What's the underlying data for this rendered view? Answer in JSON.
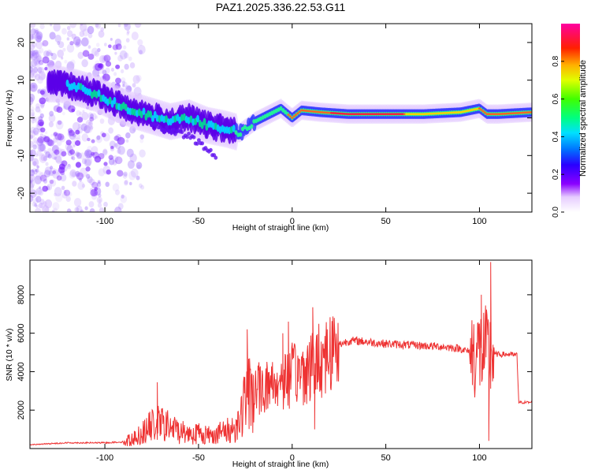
{
  "title": "PAZ1.2025.336.22.53.G11",
  "chart_data": [
    {
      "type": "heatmap",
      "xlabel": "Height of straight line (km)",
      "ylabel": "Frequency (Hz)",
      "xlim": [
        -140,
        128
      ],
      "ylim": [
        -25,
        25
      ],
      "xticks": [
        -100,
        -50,
        0,
        50,
        100
      ],
      "yticks": [
        -20,
        -10,
        0,
        10,
        20
      ],
      "colorbar": {
        "label": "Normalized spectral amplitude",
        "range": [
          0,
          1
        ],
        "ticks": [
          0.0,
          0.2,
          0.4,
          0.6,
          0.8
        ],
        "colormap": "rainbow (white → violet → blue → cyan → green → yellow → red → magenta)"
      },
      "ridge": {
        "x": [
          -125,
          -115,
          -105,
          -95,
          -85,
          -75,
          -65,
          -55,
          -45,
          -35,
          -28,
          -20,
          -12,
          -6,
          0,
          5,
          15,
          30,
          50,
          70,
          90,
          100,
          104,
          110,
          128
        ],
        "y": [
          9,
          8,
          6.5,
          4,
          2,
          0.5,
          -1,
          0,
          -2,
          -3,
          -4,
          -1,
          1,
          2.5,
          0,
          2,
          1.5,
          1,
          1,
          1,
          1.5,
          2.5,
          1,
          1,
          1.5
        ]
      },
      "lower_branch": {
        "x": [
          -75,
          -65,
          -55,
          -50,
          -45,
          -40
        ],
        "y": [
          -2,
          -3.5,
          -5,
          -6.5,
          -8.5,
          -11
        ]
      }
    },
    {
      "type": "line",
      "xlabel": "Height of straight line (km)",
      "ylabel": "SNR (10 * v/v)",
      "xlim": [
        -140,
        128
      ],
      "ylim": [
        0,
        9800
      ],
      "xticks": [
        -100,
        -50,
        0,
        50,
        100
      ],
      "yticks": [
        2000,
        4000,
        6000,
        8000
      ],
      "color": "#ee3333",
      "envelope": {
        "x": [
          -140,
          -120,
          -100,
          -90,
          -85,
          -80,
          -75,
          -70,
          -65,
          -60,
          -55,
          -50,
          -45,
          -40,
          -35,
          -30,
          -27,
          -25,
          -22,
          -18,
          -15,
          -10,
          -6,
          -3,
          0,
          3,
          6,
          9,
          12,
          15,
          20,
          25,
          30,
          35,
          40,
          50,
          60,
          70,
          80,
          90,
          95,
          100,
          103,
          105,
          107,
          110,
          115,
          120,
          121,
          125,
          128
        ],
        "y": [
          200,
          300,
          300,
          350,
          500,
          800,
          1200,
          1300,
          1100,
          900,
          800,
          800,
          700,
          800,
          900,
          1100,
          1800,
          2600,
          2900,
          3100,
          3200,
          3400,
          3500,
          3600,
          3800,
          3900,
          4000,
          4200,
          4400,
          4700,
          5100,
          5400,
          5600,
          5600,
          5550,
          5450,
          5400,
          5350,
          5300,
          5200,
          5000,
          5000,
          5000,
          4900,
          4900,
          4900,
          4900,
          4850,
          2400,
          2400,
          2400
        ]
      },
      "spikes": [
        {
          "x": -72,
          "y": 3450
        },
        {
          "x": -24,
          "y": 6200
        },
        {
          "x": -5,
          "y": 6000
        },
        {
          "x": -2,
          "y": 6600
        },
        {
          "x": 11,
          "y": 7350
        },
        {
          "x": 12,
          "y": 1000
        },
        {
          "x": 100,
          "y": 6500
        },
        {
          "x": 101,
          "y": 8000
        },
        {
          "x": 105,
          "y": 400
        },
        {
          "x": 106,
          "y": 9700
        }
      ]
    }
  ]
}
